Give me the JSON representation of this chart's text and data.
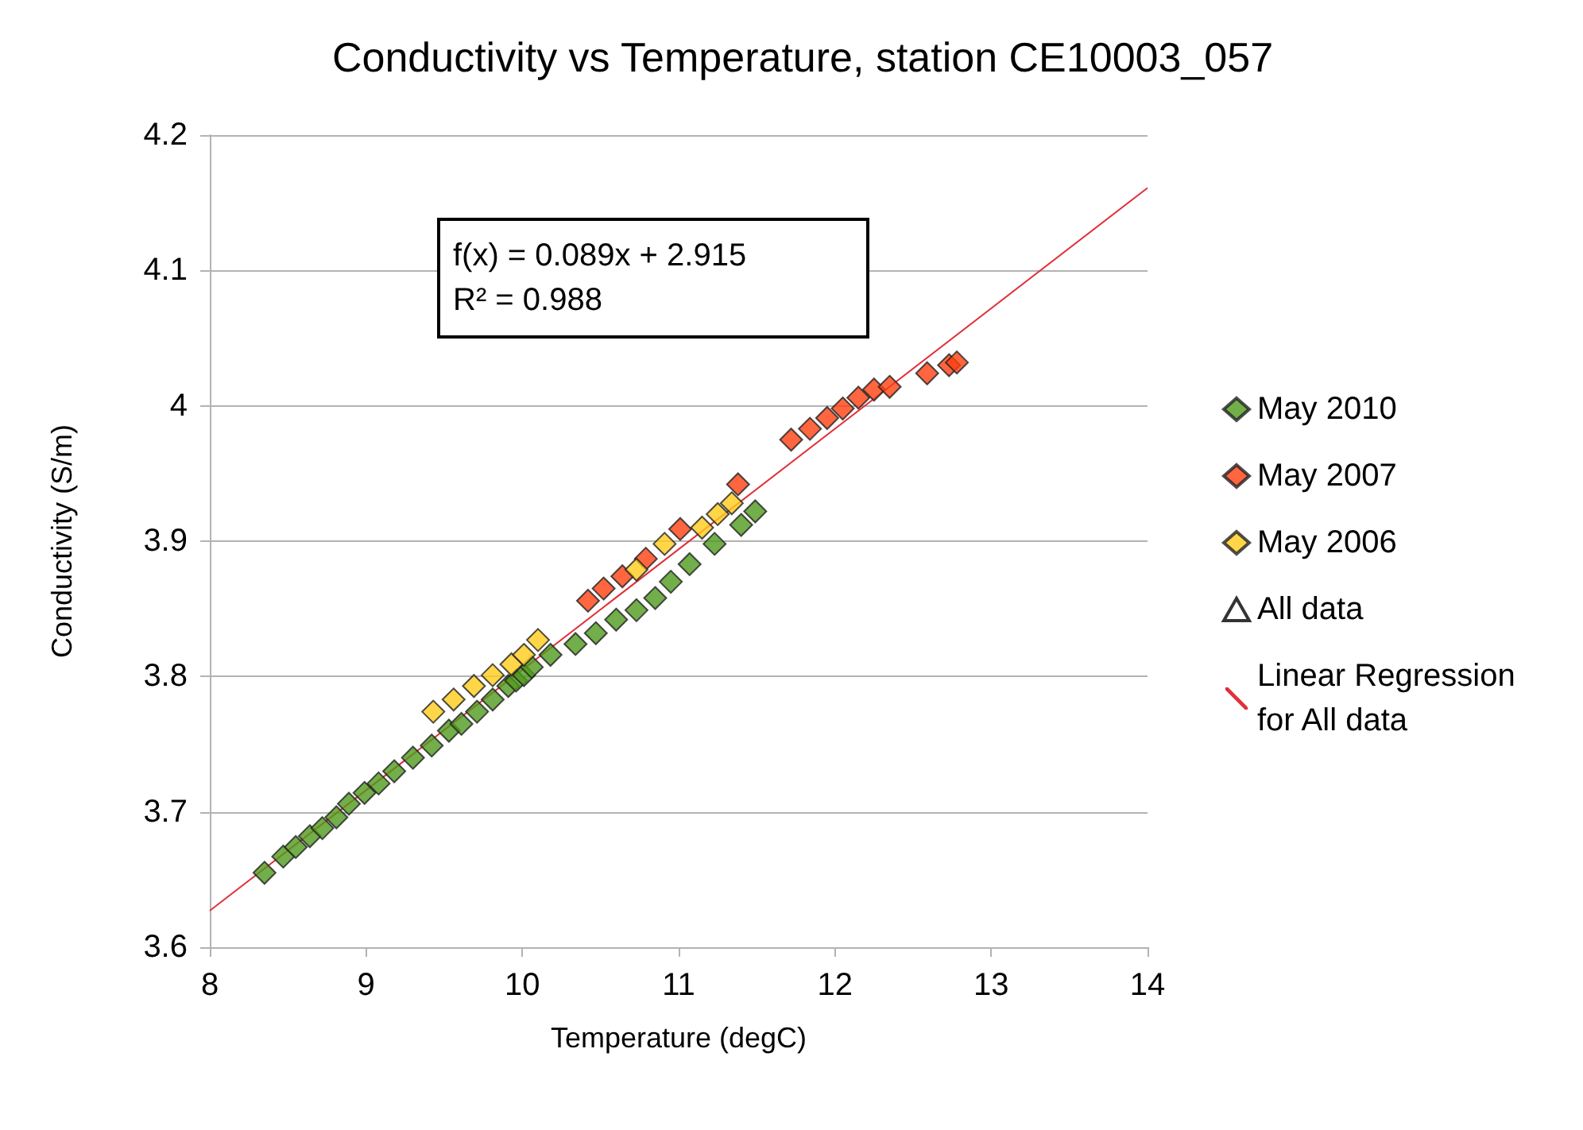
{
  "chart_data": {
    "type": "scatter",
    "title": "Conductivity vs Temperature, station CE10003_057",
    "xlabel": "Temperature (degC)",
    "ylabel": "Conductivity (S/m)",
    "xlim": [
      8,
      14
    ],
    "xticks": [
      8,
      9,
      10,
      11,
      12,
      13,
      14
    ],
    "ylim": [
      3.6,
      4.2
    ],
    "yticks": [
      3.6,
      3.7,
      3.8,
      3.9,
      4,
      4.1,
      4.2
    ],
    "grid": "y",
    "legend": "right",
    "marker": "diamond",
    "annotations": [
      "f(x) = 0.089x + 2.915",
      "R² = 0.988"
    ],
    "series": [
      {
        "name": "May 2010",
        "color": "#4f9a1c",
        "x": [
          8.35,
          8.47,
          8.55,
          8.64,
          8.72,
          8.81,
          8.89,
          8.99,
          9.08,
          9.18,
          9.3,
          9.42,
          9.53,
          9.61,
          9.71,
          9.81,
          9.91,
          9.96,
          10.01,
          10.06,
          10.18,
          10.34,
          10.47,
          10.6,
          10.73,
          10.85,
          10.95,
          11.07,
          11.23,
          11.4,
          11.49
        ],
        "values": [
          3.655,
          3.667,
          3.674,
          3.682,
          3.688,
          3.696,
          3.706,
          3.714,
          3.721,
          3.73,
          3.74,
          3.749,
          3.76,
          3.765,
          3.774,
          3.783,
          3.793,
          3.797,
          3.801,
          3.807,
          3.816,
          3.824,
          3.832,
          3.842,
          3.849,
          3.858,
          3.87,
          3.883,
          3.898,
          3.912,
          3.922
        ]
      },
      {
        "name": "May 2007",
        "color": "#ff4010",
        "x": [
          10.42,
          10.52,
          10.64,
          10.79,
          11.01,
          11.38,
          11.72,
          11.84,
          11.95,
          12.05,
          12.15,
          12.25,
          12.35,
          12.59,
          12.73,
          12.78
        ],
        "values": [
          3.856,
          3.865,
          3.874,
          3.887,
          3.909,
          3.942,
          3.975,
          3.983,
          3.991,
          3.998,
          4.006,
          4.012,
          4.014,
          4.024,
          4.03,
          4.032
        ]
      },
      {
        "name": "May 2006",
        "color": "#ffcc1a",
        "x": [
          9.43,
          9.56,
          9.69,
          9.81,
          9.93,
          10.01,
          10.1,
          10.73,
          10.91,
          11.15,
          11.25,
          11.34
        ],
        "values": [
          3.774,
          3.783,
          3.793,
          3.801,
          3.809,
          3.816,
          3.827,
          3.879,
          3.898,
          3.91,
          3.92,
          3.928
        ]
      },
      {
        "name": "All data",
        "color": "#000000",
        "marker": "triangle"
      },
      {
        "name": "Linear Regression for All data",
        "type": "line",
        "color": "#e0303a",
        "marker": "none",
        "x": [
          8,
          14
        ],
        "values": [
          3.627,
          4.161
        ]
      }
    ]
  }
}
